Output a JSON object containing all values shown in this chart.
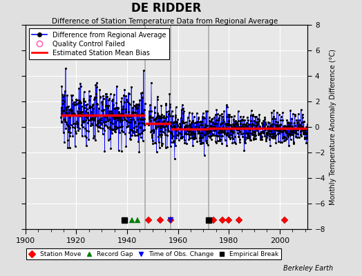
{
  "title": "DE RIDDER",
  "subtitle": "Difference of Station Temperature Data from Regional Average",
  "ylabel_right": "Monthly Temperature Anomaly Difference (°C)",
  "xlim": [
    1900,
    2011
  ],
  "ylim": [
    -8,
    8
  ],
  "yticks": [
    -8,
    -6,
    -4,
    -2,
    0,
    2,
    4,
    6,
    8
  ],
  "xticks": [
    1900,
    1920,
    1940,
    1960,
    1980,
    2000
  ],
  "background_color": "#e0e0e0",
  "plot_bg_color": "#e8e8e8",
  "grid_color": "#ffffff",
  "seed": 12345,
  "segments": [
    {
      "x_start": 1914.0,
      "x_end": 1940.0,
      "bias": 1.0,
      "noise": 1.1
    },
    {
      "x_start": 1940.0,
      "x_end": 1947.0,
      "bias": 0.5,
      "noise": 1.0
    },
    {
      "x_start": 1948.5,
      "x_end": 1957.0,
      "bias": 0.3,
      "noise": 1.0
    },
    {
      "x_start": 1957.0,
      "x_end": 1965.0,
      "bias": -0.1,
      "noise": 0.8
    },
    {
      "x_start": 1965.0,
      "x_end": 1972.0,
      "bias": -0.2,
      "noise": 0.7
    },
    {
      "x_start": 1972.0,
      "x_end": 1979.0,
      "bias": -0.1,
      "noise": 0.7
    },
    {
      "x_start": 1979.0,
      "x_end": 1990.0,
      "bias": -0.15,
      "noise": 0.65
    },
    {
      "x_start": 1990.0,
      "x_end": 2011.0,
      "bias": -0.15,
      "noise": 0.6
    }
  ],
  "bias_segments": [
    {
      "x_start": 1914.0,
      "x_end": 1947.0,
      "bias": 0.9
    },
    {
      "x_start": 1947.0,
      "x_end": 1957.0,
      "bias": 0.25
    },
    {
      "x_start": 1957.0,
      "x_end": 1972.0,
      "bias": -0.15
    },
    {
      "x_start": 1972.0,
      "x_end": 2011.0,
      "bias": -0.1
    }
  ],
  "vertical_lines": [
    1947.0,
    1957.0,
    1972.0
  ],
  "vertical_line_color": "#aaaaaa",
  "gap_start": 1947.0,
  "gap_end": 1948.5,
  "station_moves": [
    1948.5,
    1953.0,
    1957.0,
    1974.0,
    1977.5,
    1980.0,
    1984.0,
    2002.0
  ],
  "record_gaps": [
    1942.0,
    1944.0
  ],
  "obs_changes": [
    1957.0
  ],
  "empirical_breaks": [
    1939.0,
    1972.0
  ],
  "qc_failed_times": [
    1947.3,
    1947.5
  ],
  "qc_values": [
    3.5,
    3.2
  ],
  "marker_y": -7.3,
  "source_text": "Berkeley Earth"
}
